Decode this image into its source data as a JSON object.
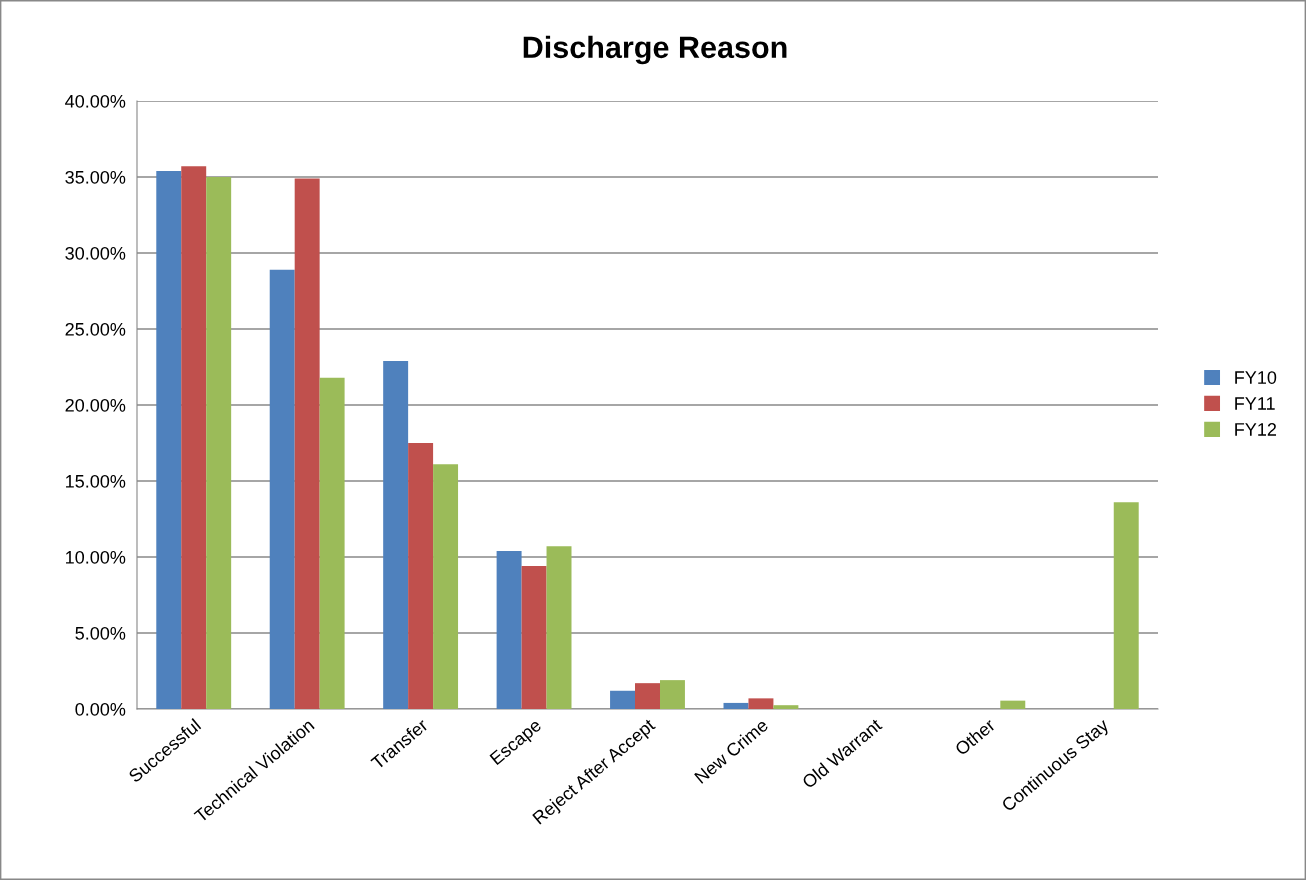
{
  "chart_data": {
    "type": "bar",
    "title": "Discharge Reason",
    "categories": [
      "Successful",
      "Technical Violation",
      "Transfer",
      "Escape",
      "Reject After Accept",
      "New Crime",
      "Old Warrant",
      "Other",
      "Continuous Stay"
    ],
    "series": [
      {
        "name": "FY10",
        "color": "#4f81bd",
        "values": [
          35.4,
          28.9,
          22.9,
          10.4,
          1.2,
          0.4,
          0,
          0,
          0
        ]
      },
      {
        "name": "FY11",
        "color": "#c0504d",
        "values": [
          35.7,
          34.9,
          17.5,
          9.4,
          1.7,
          0.7,
          0,
          0,
          0
        ]
      },
      {
        "name": "FY12",
        "color": "#9bbb59",
        "values": [
          35.0,
          21.8,
          16.1,
          10.7,
          1.9,
          0.25,
          0,
          0.55,
          13.6
        ]
      }
    ],
    "ylim": [
      0,
      40
    ],
    "yticks": [
      {
        "value": 0,
        "label": "0.00%"
      },
      {
        "value": 5,
        "label": "5.00%"
      },
      {
        "value": 10,
        "label": "10.00%"
      },
      {
        "value": 15,
        "label": "15.00%"
      },
      {
        "value": 20,
        "label": "20.00%"
      },
      {
        "value": 25,
        "label": "25.00%"
      },
      {
        "value": 30,
        "label": "30.00%"
      },
      {
        "value": 35,
        "label": "35.00%"
      },
      {
        "value": 40,
        "label": "40.00%"
      }
    ],
    "grid": "y",
    "legend": "right"
  }
}
